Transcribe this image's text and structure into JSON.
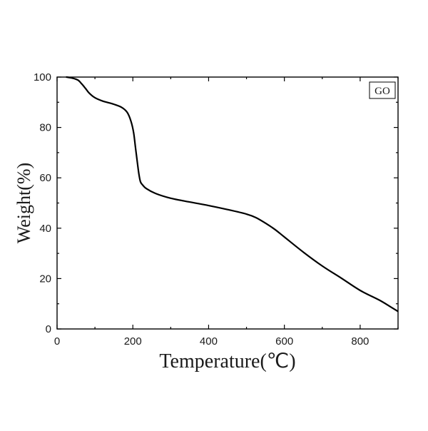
{
  "chart_data": {
    "type": "line",
    "title": "",
    "xlabel": "Temperature(℃)",
    "ylabel": "Weight(%)",
    "xlim": [
      0,
      900
    ],
    "ylim": [
      0,
      100
    ],
    "xticks": [
      0,
      200,
      400,
      600,
      800
    ],
    "yticks": [
      0,
      20,
      40,
      60,
      80,
      100
    ],
    "grid": false,
    "legend_position": "top-right",
    "series": [
      {
        "name": "GO",
        "color": "#000000",
        "x": [
          25,
          40,
          55,
          65,
          75,
          85,
          100,
          120,
          150,
          170,
          185,
          195,
          202,
          207,
          212,
          216,
          220,
          225,
          235,
          260,
          300,
          350,
          400,
          450,
          500,
          525,
          550,
          575,
          600,
          650,
          700,
          750,
          800,
          850,
          880,
          905
        ],
        "y": [
          100,
          99.6,
          98.8,
          97.3,
          95.5,
          93.6,
          91.8,
          90.5,
          89.2,
          88,
          86,
          82.5,
          78,
          72,
          66,
          61.5,
          58.5,
          57.3,
          55.8,
          53.8,
          51.9,
          50.4,
          49,
          47.4,
          45.6,
          44.2,
          42,
          39.5,
          36.5,
          30.5,
          25,
          20.2,
          15.3,
          11.5,
          8.8,
          6.5
        ]
      }
    ]
  }
}
